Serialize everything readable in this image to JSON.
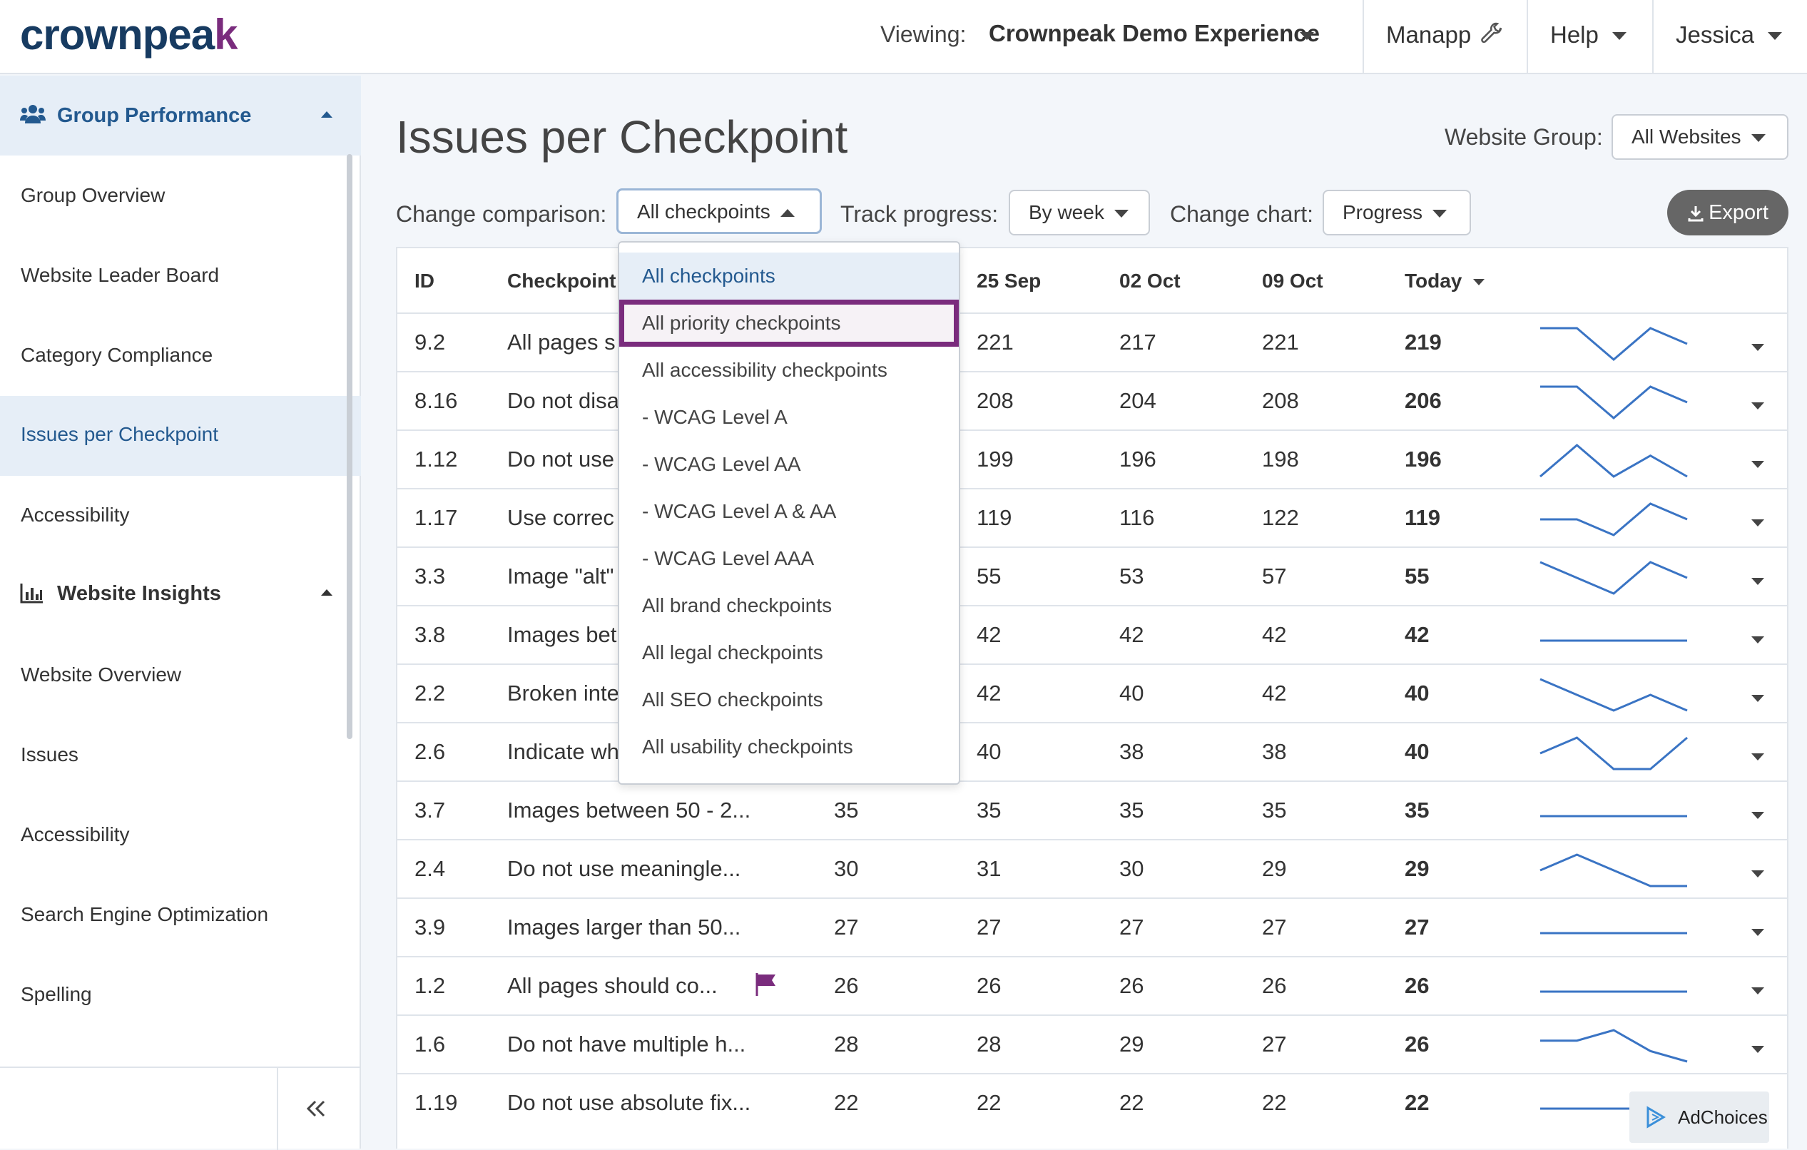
{
  "header": {
    "logo_text": "crownpea",
    "logo_accent": "k",
    "viewing_label": "Viewing:",
    "viewing_value": "Crownpeak Demo Experience",
    "nav": [
      "Manapp",
      "Help",
      "Jessica"
    ]
  },
  "sidebar": {
    "group_performance": {
      "label": "Group Performance",
      "items": [
        "Group Overview",
        "Website Leader Board",
        "Category Compliance",
        "Issues per Checkpoint",
        "Accessibility"
      ]
    },
    "website_insights": {
      "label": "Website Insights",
      "items": [
        "Website Overview",
        "Issues",
        "Accessibility",
        "Search Engine Optimization",
        "Spelling"
      ]
    },
    "active_item": "Issues per Checkpoint"
  },
  "main": {
    "title": "Issues per Checkpoint",
    "website_group_label": "Website Group:",
    "website_group_value": "All Websites",
    "change_comparison_label": "Change comparison:",
    "change_comparison_value": "All checkpoints",
    "track_progress_label": "Track progress:",
    "track_progress_value": "By week",
    "change_chart_label": "Change chart:",
    "change_chart_value": "Progress",
    "export_label": "Export"
  },
  "table": {
    "headers": {
      "id": "ID",
      "checkpoint": "Checkpoint",
      "d1": "25 Sep",
      "d2": "02 Oct",
      "d3": "09 Oct",
      "today": "Today"
    },
    "rows": [
      {
        "id": "9.2",
        "checkpoint": "All pages s",
        "c0": "",
        "c1": "221",
        "c2": "217",
        "c3": "221",
        "today": "219",
        "trend": [
          221,
          221,
          217,
          221,
          219
        ]
      },
      {
        "id": "8.16",
        "checkpoint": "Do not disa",
        "c0": "",
        "c1": "208",
        "c2": "204",
        "c3": "208",
        "today": "206",
        "trend": [
          208,
          208,
          204,
          208,
          206
        ]
      },
      {
        "id": "1.12",
        "checkpoint": "Do not use",
        "c0": "",
        "c1": "199",
        "c2": "196",
        "c3": "198",
        "today": "196",
        "trend": [
          196,
          199,
          196,
          198,
          196
        ]
      },
      {
        "id": "1.17",
        "checkpoint": "Use correc",
        "c0": "",
        "c1": "119",
        "c2": "116",
        "c3": "122",
        "today": "119",
        "trend": [
          119,
          119,
          116,
          122,
          119
        ]
      },
      {
        "id": "3.3",
        "checkpoint": "Image \"alt\"",
        "c0": "",
        "c1": "55",
        "c2": "53",
        "c3": "57",
        "today": "55",
        "trend": [
          57,
          55,
          53,
          57,
          55
        ]
      },
      {
        "id": "3.8",
        "checkpoint": "Images bet",
        "c0": "",
        "c1": "42",
        "c2": "42",
        "c3": "42",
        "today": "42",
        "trend": [
          42,
          42,
          42,
          42,
          42
        ]
      },
      {
        "id": "2.2",
        "checkpoint": "Broken inte",
        "c0": "",
        "c1": "42",
        "c2": "40",
        "c3": "42",
        "today": "40",
        "trend": [
          44,
          42,
          40,
          42,
          40
        ]
      },
      {
        "id": "2.6",
        "checkpoint": "Indicate wh",
        "c0": "",
        "c1": "40",
        "c2": "38",
        "c3": "38",
        "today": "40",
        "trend": [
          39,
          40,
          38,
          38,
          40
        ]
      },
      {
        "id": "3.7",
        "checkpoint": "Images between 50 - 2...",
        "c0": "35",
        "c1": "35",
        "c2": "35",
        "c3": "35",
        "today": "35",
        "trend": [
          35,
          35,
          35,
          35,
          35
        ]
      },
      {
        "id": "2.4",
        "checkpoint": "Do not use meaningle...",
        "c0": "30",
        "c1": "31",
        "c2": "30",
        "c3": "29",
        "today": "29",
        "trend": [
          30,
          31,
          30,
          29,
          29
        ]
      },
      {
        "id": "3.9",
        "checkpoint": "Images larger than 50...",
        "c0": "27",
        "c1": "27",
        "c2": "27",
        "c3": "27",
        "today": "27",
        "trend": [
          27,
          27,
          27,
          27,
          27
        ]
      },
      {
        "id": "1.2",
        "checkpoint": "All pages should co...",
        "c0": "26",
        "c1": "26",
        "c2": "26",
        "c3": "26",
        "today": "26",
        "trend": [
          26,
          26,
          26,
          26,
          26
        ],
        "flag": true
      },
      {
        "id": "1.6",
        "checkpoint": "Do not have multiple h...",
        "c0": "28",
        "c1": "28",
        "c2": "29",
        "c3": "27",
        "today": "26",
        "trend": [
          28,
          28,
          29,
          27,
          26
        ]
      },
      {
        "id": "1.19",
        "checkpoint": "Do not use absolute fix...",
        "c0": "22",
        "c1": "22",
        "c2": "22",
        "c3": "22",
        "today": "22",
        "trend": [
          22,
          22,
          22,
          22,
          22
        ]
      }
    ]
  },
  "dropdown": {
    "options": [
      "All checkpoints",
      "All priority checkpoints",
      "All accessibility checkpoints",
      "- WCAG Level A",
      "- WCAG Level AA",
      "- WCAG Level A & AA",
      "- WCAG Level AAA",
      "All brand checkpoints",
      "All legal checkpoints",
      "All SEO checkpoints",
      "All usability checkpoints"
    ],
    "selected": "All checkpoints",
    "highlighted": "All priority checkpoints"
  },
  "adchoices": "AdChoices",
  "colors": {
    "brand": "#173b61",
    "accent": "#7a2c7d",
    "link": "#23598f",
    "spark": "#3a74c4"
  },
  "icons": [
    "users-icon",
    "bar-chart-icon",
    "wrench-icon",
    "download-icon",
    "flag-icon",
    "double-chevron-left-icon",
    "adchoices-icon"
  ]
}
